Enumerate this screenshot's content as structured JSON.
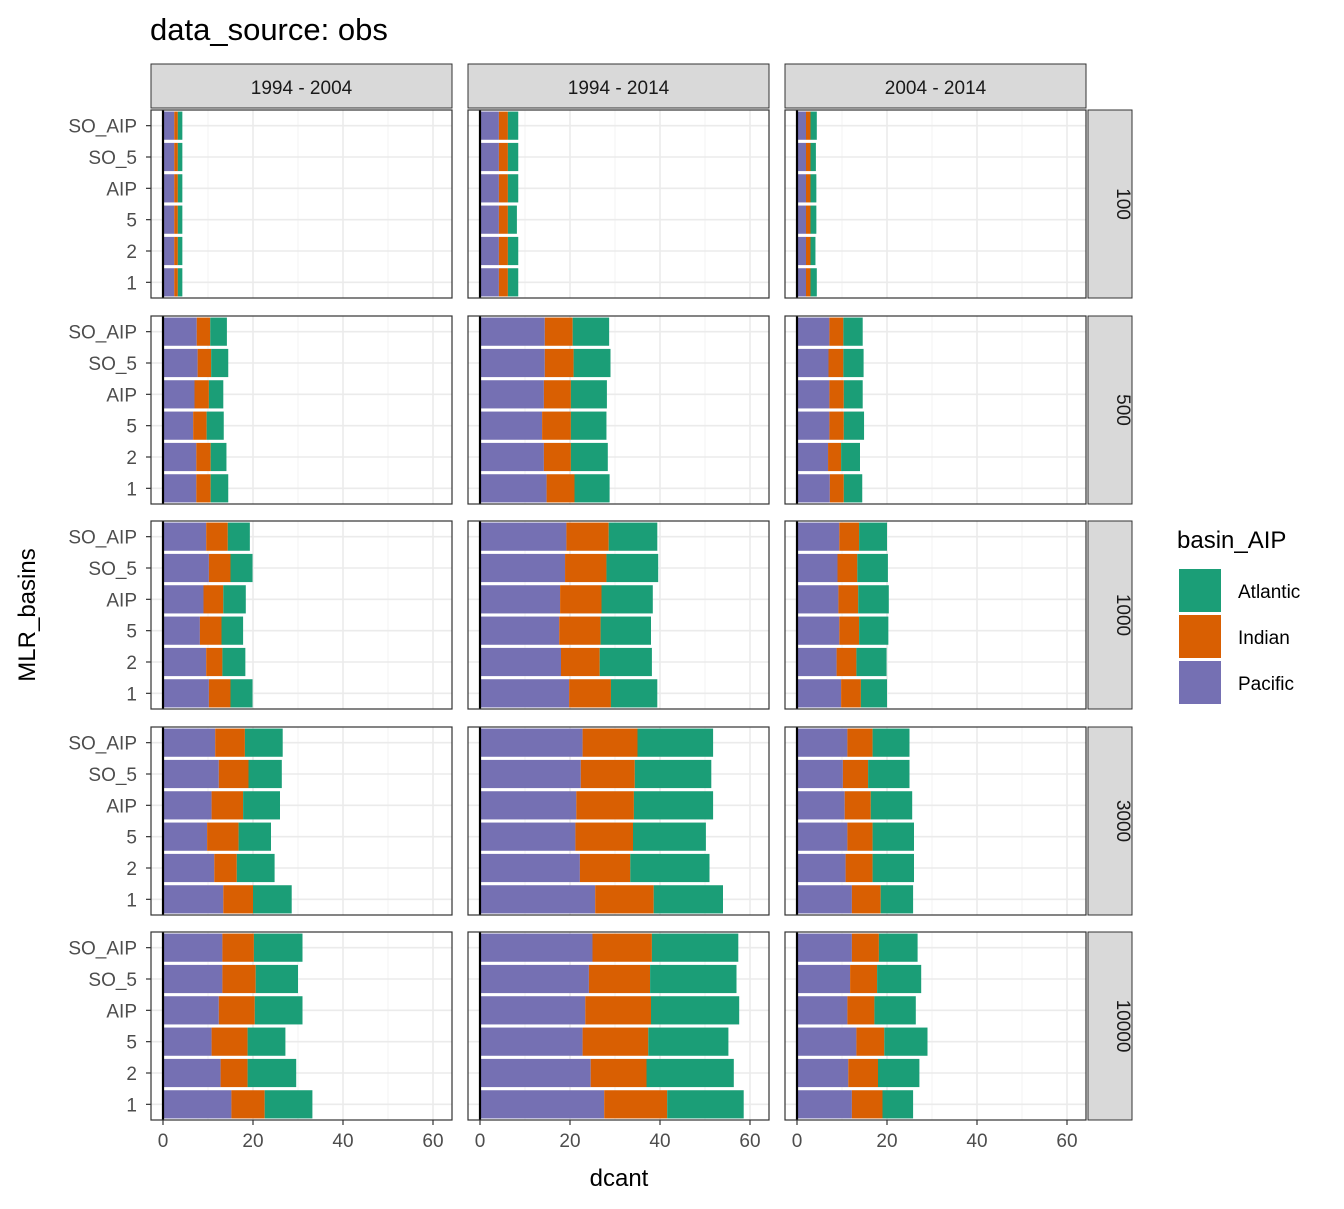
{
  "chart_data": {
    "type": "bar",
    "orientation": "horizontal",
    "stacked": true,
    "title": "data_source: obs",
    "xlabel": "dcant",
    "ylabel": "MLR_basins",
    "xlim": [
      0,
      62
    ],
    "x_ticks": [
      "0",
      "20",
      "40",
      "60"
    ],
    "x_tick_values": [
      0,
      20,
      40,
      60
    ],
    "categories": [
      "SO_AIP",
      "SO_5",
      "AIP",
      "5",
      "2",
      "1"
    ],
    "column_facets": [
      "1994 - 2004",
      "1994 - 2014",
      "2004 - 2014"
    ],
    "row_facets": [
      "100",
      "500",
      "1000",
      "3000",
      "10000"
    ],
    "legend": {
      "title": "basin_AIP",
      "position": "right",
      "entries": [
        {
          "name": "Atlantic",
          "color": "#1B9E77"
        },
        {
          "name": "Indian",
          "color": "#D95F02"
        },
        {
          "name": "Pacific",
          "color": "#7570B3"
        }
      ]
    },
    "stack_order": [
      "Pacific",
      "Indian",
      "Atlantic"
    ],
    "colors": {
      "Atlantic": "#1B9E77",
      "Indian": "#D95F02",
      "Pacific": "#7570B3"
    },
    "grid": true,
    "panels": [
      {
        "row": "100",
        "col": "1994 - 2004",
        "values": {
          "SO_AIP": {
            "Pacific": 2.5,
            "Indian": 0.8,
            "Atlantic": 1.0
          },
          "SO_5": {
            "Pacific": 2.5,
            "Indian": 0.8,
            "Atlantic": 1.0
          },
          "AIP": {
            "Pacific": 2.5,
            "Indian": 0.8,
            "Atlantic": 1.0
          },
          "5": {
            "Pacific": 2.5,
            "Indian": 0.8,
            "Atlantic": 1.0
          },
          "2": {
            "Pacific": 2.5,
            "Indian": 0.8,
            "Atlantic": 1.0
          },
          "1": {
            "Pacific": 2.5,
            "Indian": 0.8,
            "Atlantic": 1.0
          }
        }
      },
      {
        "row": "100",
        "col": "1994 - 2014",
        "values": {
          "SO_AIP": {
            "Pacific": 4.2,
            "Indian": 2.0,
            "Atlantic": 2.3
          },
          "SO_5": {
            "Pacific": 4.2,
            "Indian": 2.0,
            "Atlantic": 2.3
          },
          "AIP": {
            "Pacific": 4.2,
            "Indian": 2.0,
            "Atlantic": 2.3
          },
          "5": {
            "Pacific": 4.2,
            "Indian": 2.0,
            "Atlantic": 2.0
          },
          "2": {
            "Pacific": 4.2,
            "Indian": 2.0,
            "Atlantic": 2.3
          },
          "1": {
            "Pacific": 4.2,
            "Indian": 2.0,
            "Atlantic": 2.3
          }
        }
      },
      {
        "row": "100",
        "col": "2004 - 2014",
        "values": {
          "SO_AIP": {
            "Pacific": 2.0,
            "Indian": 1.0,
            "Atlantic": 1.4
          },
          "SO_5": {
            "Pacific": 2.0,
            "Indian": 1.0,
            "Atlantic": 1.2
          },
          "AIP": {
            "Pacific": 2.0,
            "Indian": 1.0,
            "Atlantic": 1.3
          },
          "5": {
            "Pacific": 2.0,
            "Indian": 1.0,
            "Atlantic": 1.3
          },
          "2": {
            "Pacific": 2.0,
            "Indian": 1.0,
            "Atlantic": 1.1
          },
          "1": {
            "Pacific": 2.0,
            "Indian": 1.0,
            "Atlantic": 1.4
          }
        }
      },
      {
        "row": "500",
        "col": "1994 - 2004",
        "values": {
          "SO_AIP": {
            "Pacific": 7.5,
            "Indian": 3.0,
            "Atlantic": 3.7
          },
          "SO_5": {
            "Pacific": 7.7,
            "Indian": 3.0,
            "Atlantic": 3.8
          },
          "AIP": {
            "Pacific": 7.0,
            "Indian": 3.2,
            "Atlantic": 3.2
          },
          "5": {
            "Pacific": 6.7,
            "Indian": 3.0,
            "Atlantic": 3.8
          },
          "2": {
            "Pacific": 7.4,
            "Indian": 3.2,
            "Atlantic": 3.5
          },
          "1": {
            "Pacific": 7.4,
            "Indian": 3.2,
            "Atlantic": 3.9
          }
        }
      },
      {
        "row": "500",
        "col": "1994 - 2014",
        "values": {
          "SO_AIP": {
            "Pacific": 14.4,
            "Indian": 6.2,
            "Atlantic": 8.1
          },
          "SO_5": {
            "Pacific": 14.4,
            "Indian": 6.4,
            "Atlantic": 8.2
          },
          "AIP": {
            "Pacific": 14.2,
            "Indian": 6.0,
            "Atlantic": 8.0
          },
          "5": {
            "Pacific": 13.8,
            "Indian": 6.4,
            "Atlantic": 7.9
          },
          "2": {
            "Pacific": 14.2,
            "Indian": 6.0,
            "Atlantic": 8.2
          },
          "1": {
            "Pacific": 14.8,
            "Indian": 6.2,
            "Atlantic": 7.8
          }
        }
      },
      {
        "row": "500",
        "col": "2004 - 2014",
        "values": {
          "SO_AIP": {
            "Pacific": 7.2,
            "Indian": 3.1,
            "Atlantic": 4.3
          },
          "SO_5": {
            "Pacific": 7.0,
            "Indian": 3.3,
            "Atlantic": 4.5
          },
          "AIP": {
            "Pacific": 7.2,
            "Indian": 3.2,
            "Atlantic": 4.2
          },
          "5": {
            "Pacific": 7.2,
            "Indian": 3.2,
            "Atlantic": 4.5
          },
          "2": {
            "Pacific": 6.9,
            "Indian": 2.9,
            "Atlantic": 4.2
          },
          "1": {
            "Pacific": 7.3,
            "Indian": 3.1,
            "Atlantic": 4.1
          }
        }
      },
      {
        "row": "1000",
        "col": "1994 - 2004",
        "values": {
          "SO_AIP": {
            "Pacific": 9.6,
            "Indian": 4.8,
            "Atlantic": 4.9
          },
          "SO_5": {
            "Pacific": 10.2,
            "Indian": 4.8,
            "Atlantic": 4.9
          },
          "AIP": {
            "Pacific": 9.0,
            "Indian": 4.4,
            "Atlantic": 5.0
          },
          "5": {
            "Pacific": 8.2,
            "Indian": 4.8,
            "Atlantic": 4.8
          },
          "2": {
            "Pacific": 9.6,
            "Indian": 3.6,
            "Atlantic": 5.1
          },
          "1": {
            "Pacific": 10.2,
            "Indian": 4.8,
            "Atlantic": 4.9
          }
        }
      },
      {
        "row": "1000",
        "col": "1994 - 2014",
        "values": {
          "SO_AIP": {
            "Pacific": 19.2,
            "Indian": 9.4,
            "Atlantic": 10.8
          },
          "SO_5": {
            "Pacific": 18.9,
            "Indian": 9.2,
            "Atlantic": 11.5
          },
          "AIP": {
            "Pacific": 17.8,
            "Indian": 9.2,
            "Atlantic": 11.4
          },
          "5": {
            "Pacific": 17.6,
            "Indian": 9.2,
            "Atlantic": 11.2
          },
          "2": {
            "Pacific": 18.0,
            "Indian": 8.6,
            "Atlantic": 11.6
          },
          "1": {
            "Pacific": 19.8,
            "Indian": 9.3,
            "Atlantic": 10.3
          }
        }
      },
      {
        "row": "1000",
        "col": "2004 - 2014",
        "values": {
          "SO_AIP": {
            "Pacific": 9.4,
            "Indian": 4.4,
            "Atlantic": 6.2
          },
          "SO_5": {
            "Pacific": 9.0,
            "Indian": 4.4,
            "Atlantic": 6.8
          },
          "AIP": {
            "Pacific": 9.2,
            "Indian": 4.4,
            "Atlantic": 6.8
          },
          "5": {
            "Pacific": 9.4,
            "Indian": 4.4,
            "Atlantic": 6.5
          },
          "2": {
            "Pacific": 8.8,
            "Indian": 4.4,
            "Atlantic": 6.7
          },
          "1": {
            "Pacific": 9.8,
            "Indian": 4.4,
            "Atlantic": 5.8
          }
        }
      },
      {
        "row": "3000",
        "col": "1994 - 2004",
        "values": {
          "SO_AIP": {
            "Pacific": 11.6,
            "Indian": 6.6,
            "Atlantic": 8.4
          },
          "SO_5": {
            "Pacific": 12.4,
            "Indian": 6.6,
            "Atlantic": 7.4
          },
          "AIP": {
            "Pacific": 10.8,
            "Indian": 7.0,
            "Atlantic": 8.2
          },
          "5": {
            "Pacific": 9.8,
            "Indian": 7.0,
            "Atlantic": 7.2
          },
          "2": {
            "Pacific": 11.4,
            "Indian": 5.0,
            "Atlantic": 8.4
          },
          "1": {
            "Pacific": 13.4,
            "Indian": 6.6,
            "Atlantic": 8.6
          }
        }
      },
      {
        "row": "3000",
        "col": "1994 - 2014",
        "values": {
          "SO_AIP": {
            "Pacific": 22.8,
            "Indian": 12.2,
            "Atlantic": 16.8
          },
          "SO_5": {
            "Pacific": 22.4,
            "Indian": 12.0,
            "Atlantic": 17.0
          },
          "AIP": {
            "Pacific": 21.4,
            "Indian": 12.8,
            "Atlantic": 17.6
          },
          "5": {
            "Pacific": 21.2,
            "Indian": 12.8,
            "Atlantic": 16.2
          },
          "2": {
            "Pacific": 22.2,
            "Indian": 11.2,
            "Atlantic": 17.6
          },
          "1": {
            "Pacific": 25.6,
            "Indian": 13.0,
            "Atlantic": 15.4
          }
        }
      },
      {
        "row": "3000",
        "col": "2004 - 2014",
        "values": {
          "SO_AIP": {
            "Pacific": 11.2,
            "Indian": 5.6,
            "Atlantic": 8.2
          },
          "SO_5": {
            "Pacific": 10.2,
            "Indian": 5.6,
            "Atlantic": 9.2
          },
          "AIP": {
            "Pacific": 10.6,
            "Indian": 5.8,
            "Atlantic": 9.2
          },
          "5": {
            "Pacific": 11.2,
            "Indian": 5.6,
            "Atlantic": 9.2
          },
          "2": {
            "Pacific": 10.8,
            "Indian": 6.0,
            "Atlantic": 9.2
          },
          "1": {
            "Pacific": 12.2,
            "Indian": 6.4,
            "Atlantic": 7.2
          }
        }
      },
      {
        "row": "10000",
        "col": "1994 - 2004",
        "values": {
          "SO_AIP": {
            "Pacific": 13.2,
            "Indian": 7.0,
            "Atlantic": 10.8
          },
          "SO_5": {
            "Pacific": 13.2,
            "Indian": 7.4,
            "Atlantic": 9.4
          },
          "AIP": {
            "Pacific": 12.4,
            "Indian": 8.0,
            "Atlantic": 10.6
          },
          "5": {
            "Pacific": 10.8,
            "Indian": 8.0,
            "Atlantic": 8.4
          },
          "2": {
            "Pacific": 12.8,
            "Indian": 6.0,
            "Atlantic": 10.8
          },
          "1": {
            "Pacific": 15.2,
            "Indian": 7.4,
            "Atlantic": 10.6
          }
        }
      },
      {
        "row": "10000",
        "col": "1994 - 2014",
        "values": {
          "SO_AIP": {
            "Pacific": 25.0,
            "Indian": 13.2,
            "Atlantic": 19.2
          },
          "SO_5": {
            "Pacific": 24.2,
            "Indian": 13.6,
            "Atlantic": 19.2
          },
          "AIP": {
            "Pacific": 23.4,
            "Indian": 14.6,
            "Atlantic": 19.6
          },
          "5": {
            "Pacific": 22.8,
            "Indian": 14.6,
            "Atlantic": 17.8
          },
          "2": {
            "Pacific": 24.6,
            "Indian": 12.4,
            "Atlantic": 19.4
          },
          "1": {
            "Pacific": 27.6,
            "Indian": 14.0,
            "Atlantic": 17.0
          }
        }
      },
      {
        "row": "10000",
        "col": "2004 - 2014",
        "values": {
          "SO_AIP": {
            "Pacific": 12.2,
            "Indian": 6.0,
            "Atlantic": 8.6
          },
          "SO_5": {
            "Pacific": 11.8,
            "Indian": 6.0,
            "Atlantic": 9.8
          },
          "AIP": {
            "Pacific": 11.2,
            "Indian": 6.0,
            "Atlantic": 9.2
          },
          "5": {
            "Pacific": 13.2,
            "Indian": 6.2,
            "Atlantic": 9.6
          },
          "2": {
            "Pacific": 11.4,
            "Indian": 6.6,
            "Atlantic": 9.2
          },
          "1": {
            "Pacific": 12.2,
            "Indian": 6.8,
            "Atlantic": 6.8
          }
        }
      }
    ]
  }
}
